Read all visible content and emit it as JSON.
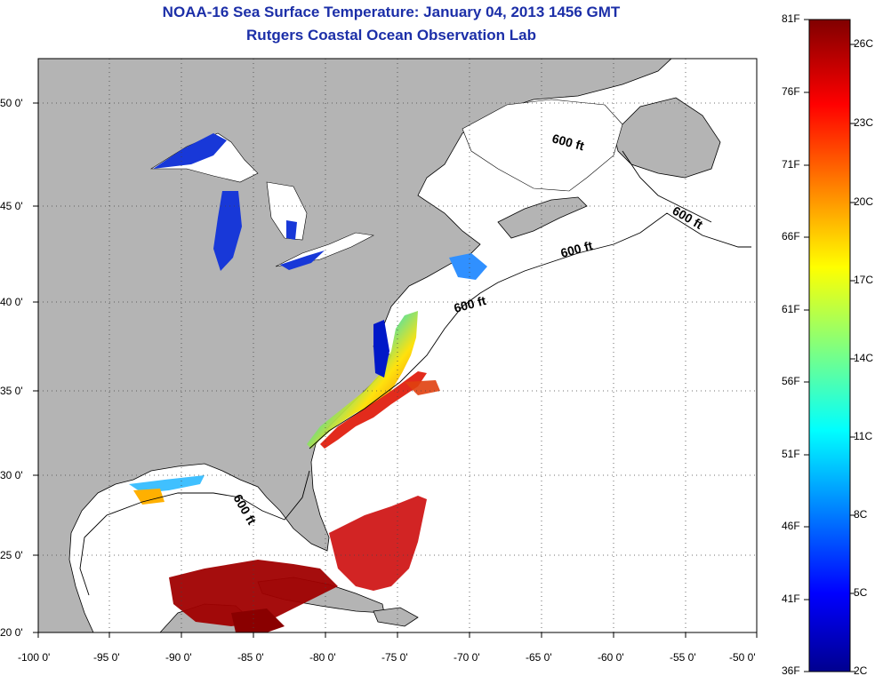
{
  "header": {
    "title": "NOAA-16 Sea Surface Temperature:  January 04, 2013 1456 GMT",
    "subtitle": "Rutgers Coastal Ocean Observation Lab"
  },
  "map": {
    "region": "US East Coast, Gulf of Mexico, Great Lakes, Atlantic Canada",
    "lon_range": [
      -100,
      -50
    ],
    "lat_range": [
      20,
      52.5
    ],
    "grid": true,
    "lon_ticks": [
      "-100 0'",
      "-95 0'",
      "-90 0'",
      "-85 0'",
      "-80 0'",
      "-75 0'",
      "-70 0'",
      "-65 0'",
      "-60 0'",
      "-55 0'",
      "-50 0'"
    ],
    "lat_ticks": [
      "20 0'",
      "25 0'",
      "30 0'",
      "35 0'",
      "40 0'",
      "45 0'",
      "50 0'"
    ],
    "contour_labels": [
      "600 ft",
      "600 ft",
      "600 ft",
      "600 ft",
      "600 ft"
    ],
    "colors": {
      "land": "#b4b4b4",
      "no_data_ocean": "#ffffff",
      "cold": "#0010d0",
      "warm": "#c00000"
    }
  },
  "colorbar": {
    "fahrenheit_labels": [
      "81F",
      "76F",
      "71F",
      "66F",
      "61F",
      "56F",
      "51F",
      "46F",
      "41F",
      "36F"
    ],
    "celsius_labels": [
      "26C",
      "23C",
      "20C",
      "17C",
      "14C",
      "11C",
      "8C",
      "5C",
      "2C"
    ],
    "colormap": "jet",
    "min_F": 36,
    "max_F": 81
  }
}
